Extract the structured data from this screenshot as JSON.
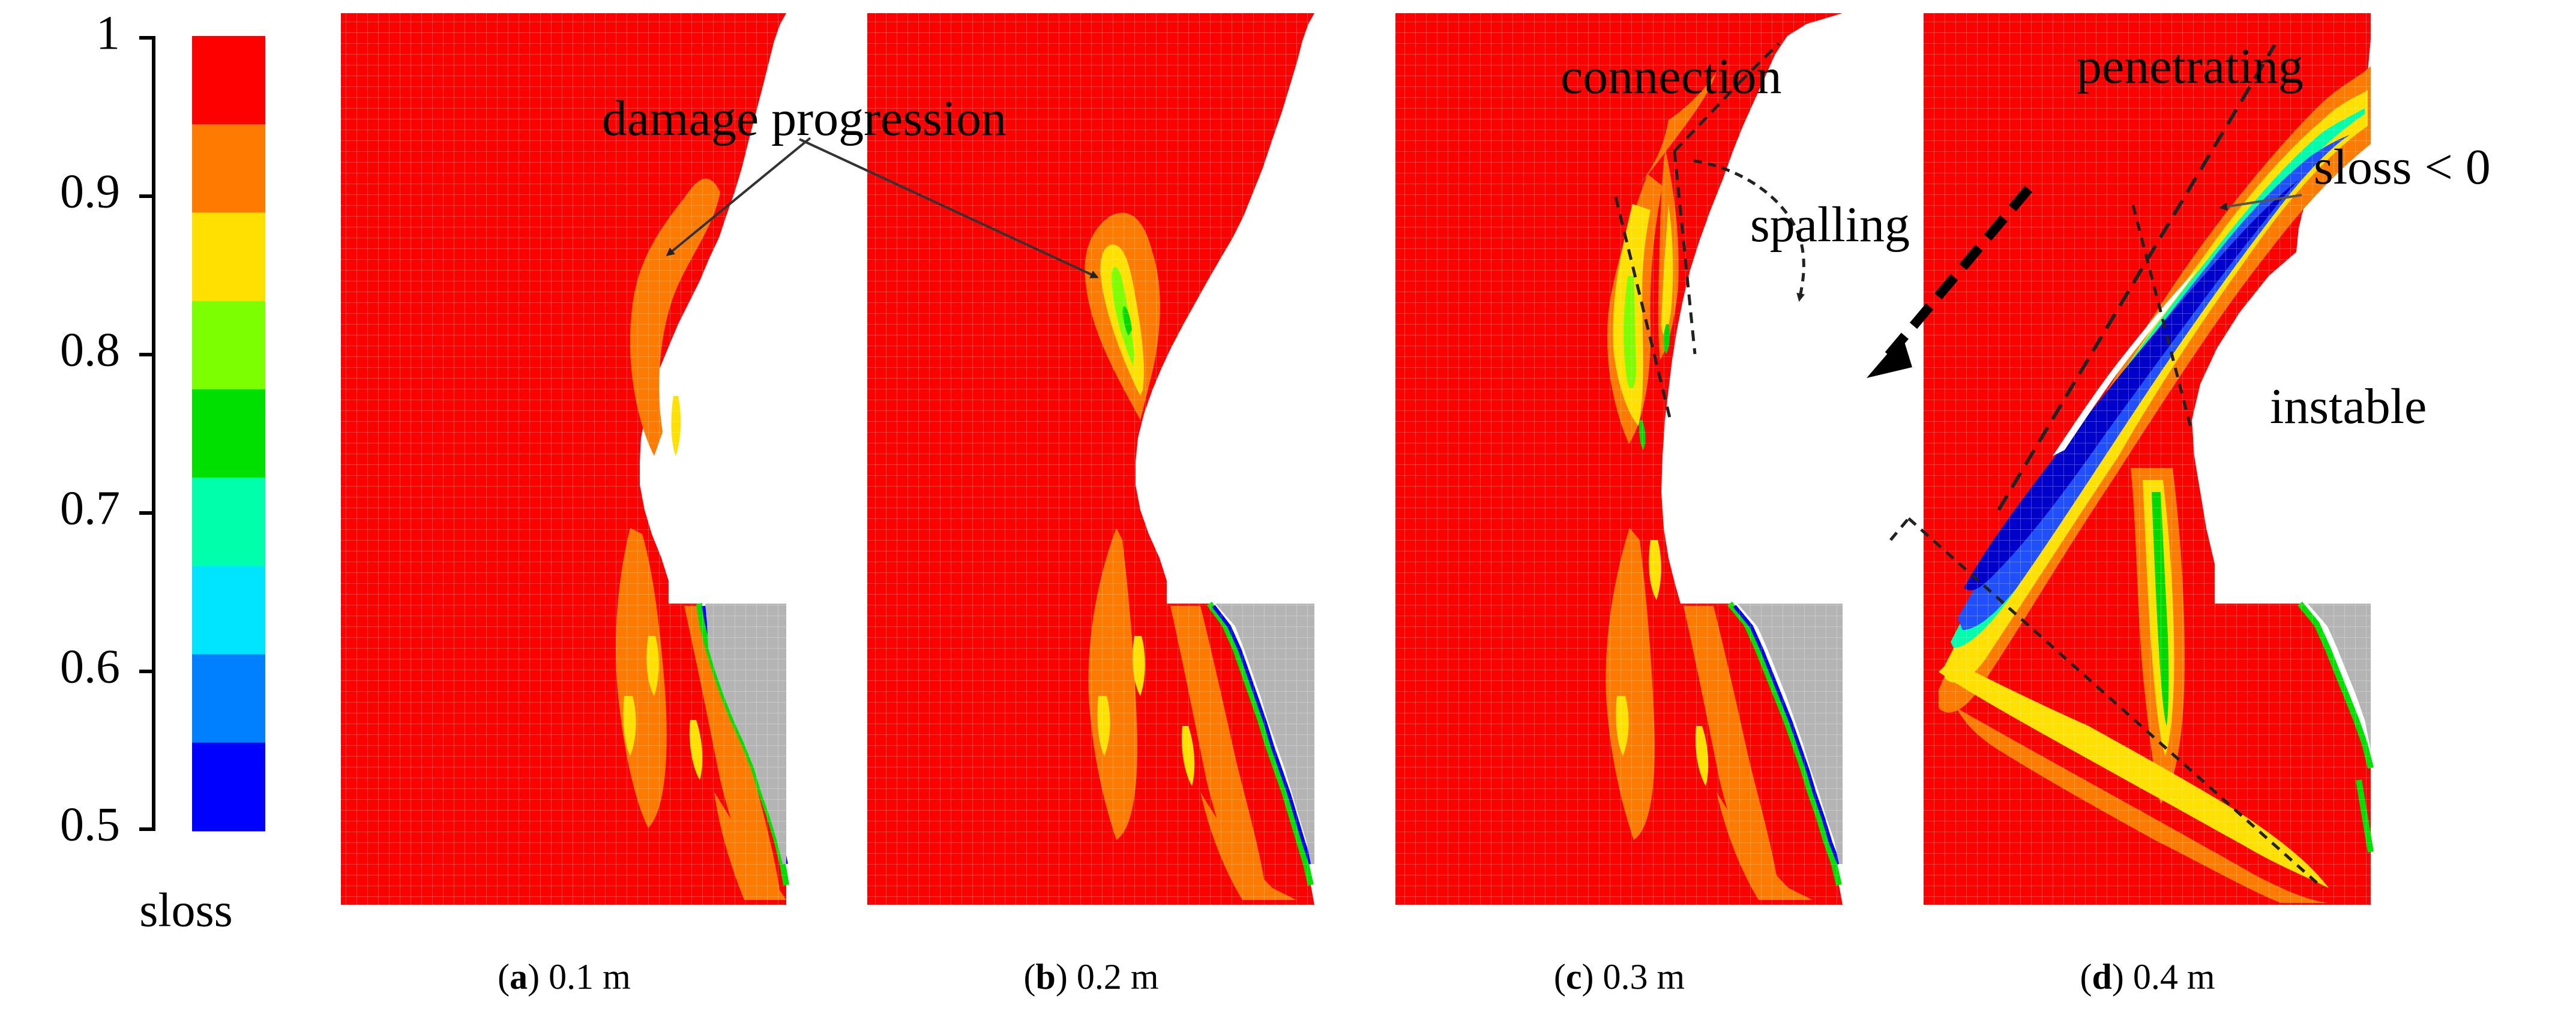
{
  "colorbar": {
    "label": "sloss",
    "ticks": [
      "1",
      "0.9",
      "0.8",
      "0.7",
      "0.6",
      "0.5"
    ],
    "colors": [
      "#ff0000",
      "#ff7a00",
      "#ffe000",
      "#7cff00",
      "#00e000",
      "#00ffaa",
      "#00e5ff",
      "#0080ff",
      "#0000ff"
    ]
  },
  "panels": [
    {
      "letter": "a",
      "value": "0.1 m"
    },
    {
      "letter": "b",
      "value": "0.2 m"
    },
    {
      "letter": "c",
      "value": "0.3 m"
    },
    {
      "letter": "d",
      "value": "0.4 m"
    }
  ],
  "annotations": {
    "damage": "damage progression",
    "connection": "connection",
    "spalling": "spalling",
    "penetrating": "penetrating",
    "sloss_neg": "sloss < 0",
    "instable": "instable"
  },
  "colors": {
    "red": "#ff0000",
    "orange": "#ff7a00",
    "yellow": "#ffe000",
    "green": "#00d800",
    "blue": "#1f4fff",
    "deep_blue": "#0000c8",
    "grey": "#b4b4b4"
  }
}
